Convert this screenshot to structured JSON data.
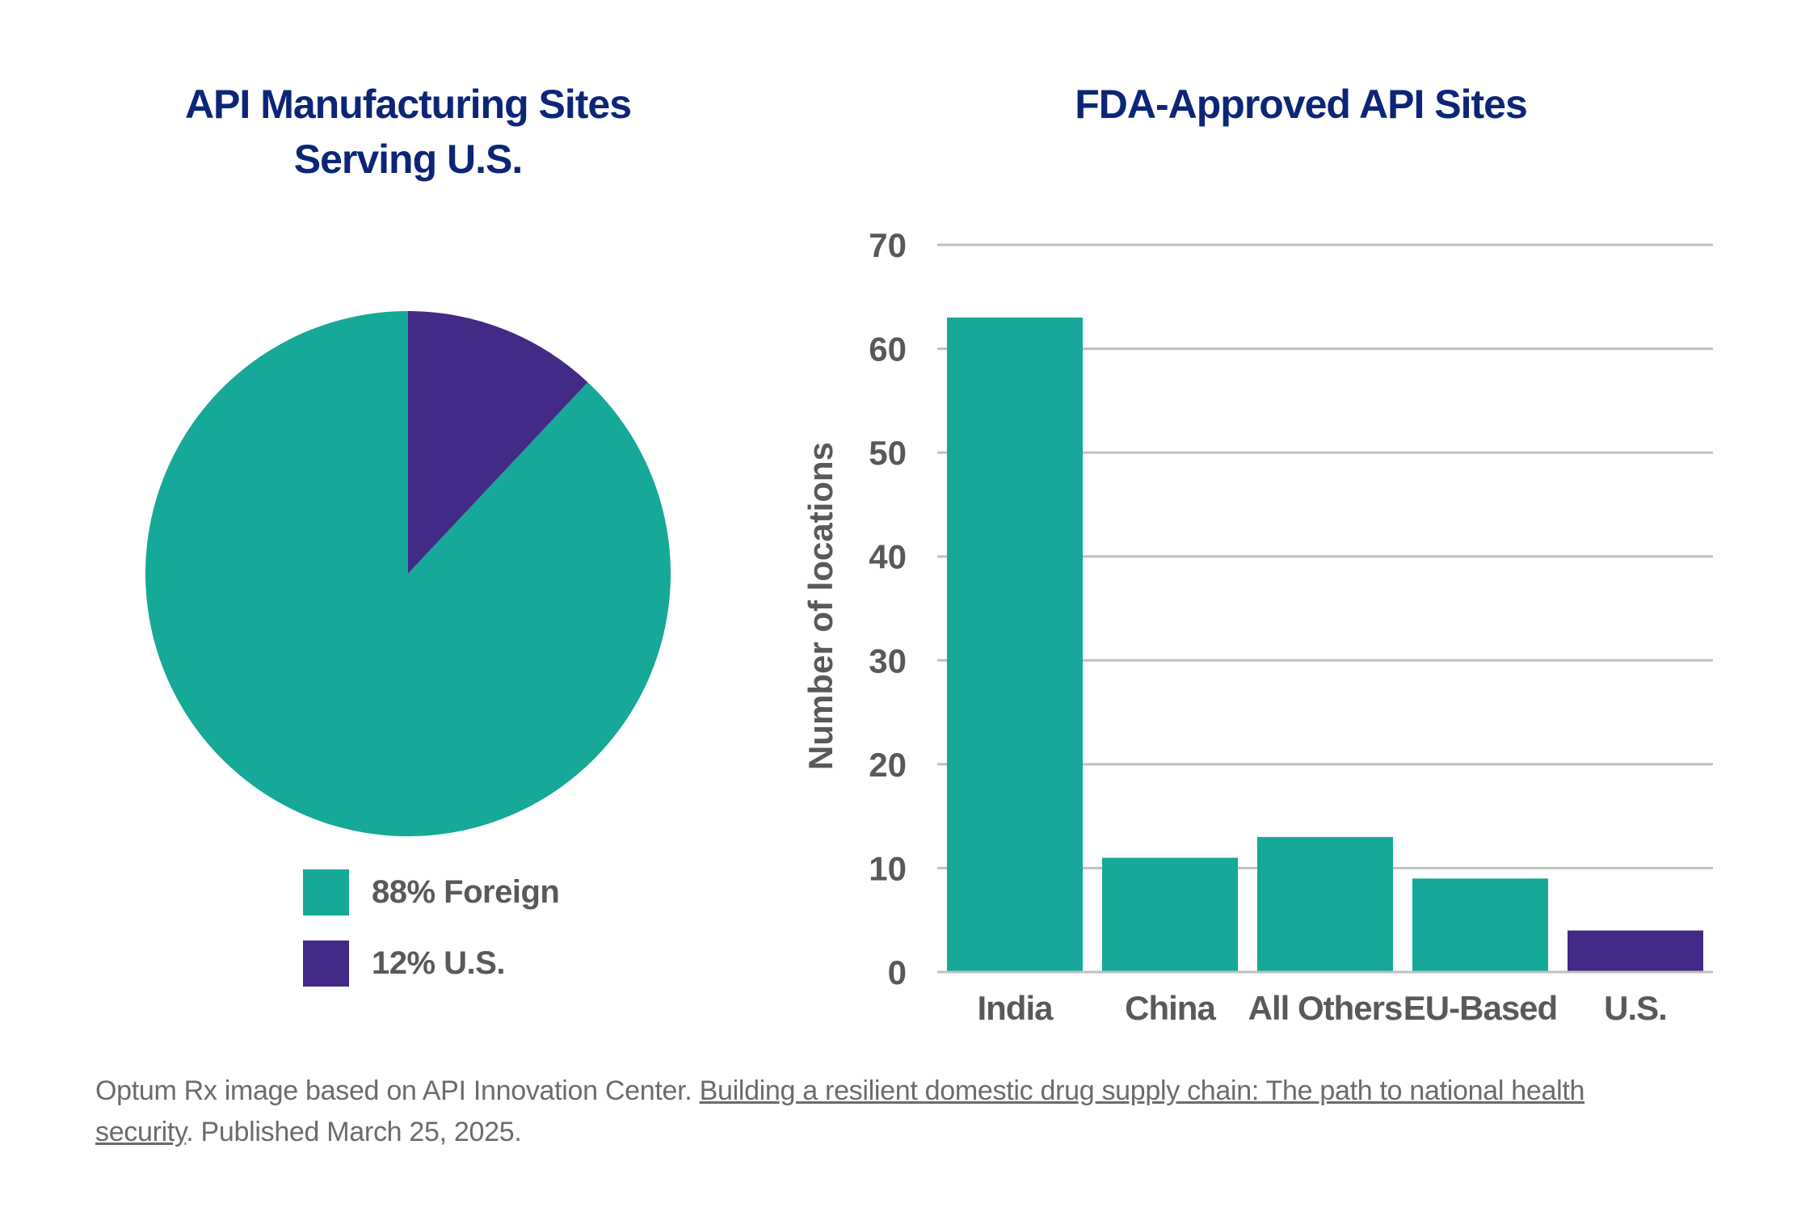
{
  "colors": {
    "title": "#0c2577",
    "teal": "#16a898",
    "purple": "#432a86",
    "grid": "#bfbfbf",
    "axis_text": "#595959",
    "footnote": "#6b6b6b"
  },
  "chart_data": [
    {
      "type": "pie",
      "title_lines": [
        "API Manufacturing Sites",
        "Serving U.S."
      ],
      "slices": [
        {
          "label": "88% Foreign",
          "value": 88,
          "color": "#16a898"
        },
        {
          "label": "12% U.S.",
          "value": 12,
          "color": "#432a86"
        }
      ],
      "legend_position": "bottom"
    },
    {
      "type": "bar",
      "title": "FDA-Approved API Sites",
      "categories": [
        "India",
        "China",
        "All Others",
        "EU-Based",
        "U.S."
      ],
      "values": [
        63,
        11,
        13,
        9,
        4
      ],
      "bar_colors": [
        "#16a898",
        "#16a898",
        "#16a898",
        "#16a898",
        "#432a86"
      ],
      "xlabel": "",
      "ylabel": "Number of locations",
      "ylim": [
        0,
        70
      ],
      "yticks": [
        0,
        10,
        20,
        30,
        40,
        50,
        60,
        70
      ],
      "grid": true
    }
  ],
  "footnote": {
    "prefix": "Optum Rx image based on API Innovation Center. ",
    "link_text": "Building a resilient domestic drug supply chain: The path to national health security",
    "suffix": ". Published March 25, 2025."
  }
}
